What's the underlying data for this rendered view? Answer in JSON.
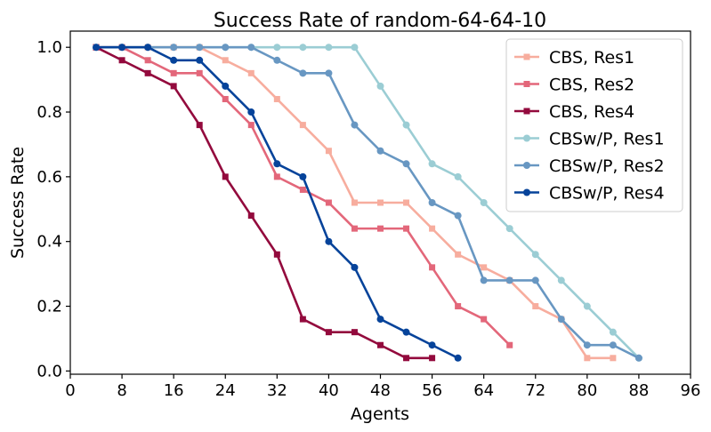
{
  "chart_data": {
    "type": "line",
    "title": "Success Rate of random-64-64-10",
    "xlabel": "Agents",
    "ylabel": "Success Rate",
    "xlim": [
      0,
      96
    ],
    "ylim": [
      -0.01,
      1.05
    ],
    "xticks": [
      0,
      8,
      16,
      24,
      32,
      40,
      48,
      56,
      64,
      72,
      80,
      88,
      96
    ],
    "yticks": [
      0.0,
      0.2,
      0.4,
      0.6,
      0.8,
      1.0
    ],
    "ytick_labels": [
      "0.0",
      "0.2",
      "0.4",
      "0.6",
      "0.8",
      "1.0"
    ],
    "grid": false,
    "legend_position": "top-right",
    "series": [
      {
        "name": "CBS, Res1",
        "color": "#f7ad9e",
        "marker": "square",
        "x": [
          4,
          8,
          12,
          16,
          20,
          24,
          28,
          32,
          36,
          40,
          44,
          48,
          52,
          56,
          60,
          64,
          68,
          72,
          76,
          80,
          84
        ],
        "y": [
          1.0,
          1.0,
          1.0,
          1.0,
          1.0,
          0.96,
          0.92,
          0.84,
          0.76,
          0.68,
          0.52,
          0.52,
          0.52,
          0.44,
          0.36,
          0.32,
          0.28,
          0.2,
          0.16,
          0.04,
          0.04
        ]
      },
      {
        "name": "CBS, Res2",
        "color": "#e3677a",
        "marker": "square",
        "x": [
          4,
          8,
          12,
          16,
          20,
          24,
          28,
          32,
          36,
          40,
          44,
          48,
          52,
          56,
          60,
          64,
          68
        ],
        "y": [
          1.0,
          1.0,
          0.96,
          0.92,
          0.92,
          0.84,
          0.76,
          0.6,
          0.56,
          0.52,
          0.44,
          0.44,
          0.44,
          0.32,
          0.2,
          0.16,
          0.08
        ]
      },
      {
        "name": "CBS, Res4",
        "color": "#930a3d",
        "marker": "square",
        "x": [
          4,
          8,
          12,
          16,
          20,
          24,
          28,
          32,
          36,
          40,
          44,
          48,
          52,
          56
        ],
        "y": [
          1.0,
          0.96,
          0.92,
          0.88,
          0.76,
          0.6,
          0.48,
          0.36,
          0.16,
          0.12,
          0.12,
          0.08,
          0.04,
          0.04
        ]
      },
      {
        "name": "CBSw/P, Res1",
        "color": "#9bcdd4",
        "marker": "circle",
        "x": [
          4,
          8,
          12,
          16,
          20,
          24,
          28,
          32,
          36,
          40,
          44,
          48,
          52,
          56,
          60,
          64,
          68,
          72,
          76,
          80,
          84,
          88
        ],
        "y": [
          1.0,
          1.0,
          1.0,
          1.0,
          1.0,
          1.0,
          1.0,
          1.0,
          1.0,
          1.0,
          1.0,
          0.88,
          0.76,
          0.64,
          0.6,
          0.52,
          0.44,
          0.36,
          0.28,
          0.2,
          0.12,
          0.04
        ]
      },
      {
        "name": "CBSw/P, Res2",
        "color": "#6897c2",
        "marker": "circle",
        "x": [
          4,
          8,
          12,
          16,
          20,
          24,
          28,
          32,
          36,
          40,
          44,
          48,
          52,
          56,
          60,
          64,
          68,
          72,
          76,
          80,
          84,
          88
        ],
        "y": [
          1.0,
          1.0,
          1.0,
          1.0,
          1.0,
          1.0,
          1.0,
          0.96,
          0.92,
          0.92,
          0.76,
          0.68,
          0.64,
          0.52,
          0.48,
          0.28,
          0.28,
          0.28,
          0.16,
          0.08,
          0.08,
          0.04
        ]
      },
      {
        "name": "CBSw/P, Res4",
        "color": "#06439a",
        "marker": "circle",
        "x": [
          4,
          8,
          12,
          16,
          20,
          24,
          28,
          32,
          36,
          40,
          44,
          48,
          52,
          56,
          60
        ],
        "y": [
          1.0,
          1.0,
          1.0,
          0.96,
          0.96,
          0.88,
          0.8,
          0.64,
          0.6,
          0.4,
          0.32,
          0.16,
          0.12,
          0.08,
          0.04
        ]
      }
    ]
  }
}
